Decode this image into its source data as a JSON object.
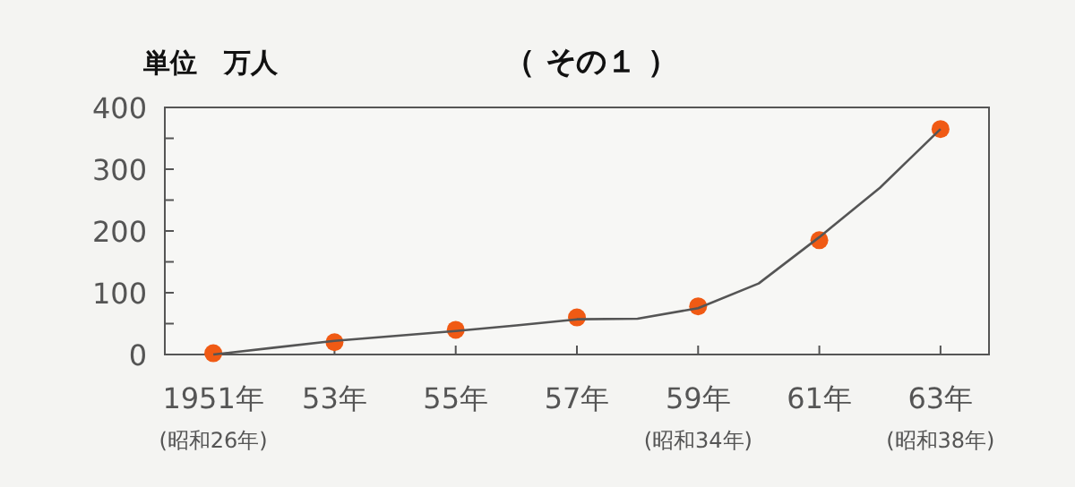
{
  "chart_data": {
    "type": "line",
    "title": "（ その１ ）",
    "ylabel": "単位　万人",
    "categories": [
      "1951年\n(昭和26年)",
      null,
      "53年",
      null,
      "55年",
      null,
      "57年",
      null,
      "59年\n(昭和34年)",
      null,
      "61年",
      null,
      "63年\n(昭和38年)"
    ],
    "ylim": [
      0,
      400
    ],
    "yticks": [
      0,
      {
        "value": 50,
        "label": null
      },
      100,
      {
        "value": 150,
        "label": null
      },
      200,
      {
        "value": 250,
        "label": null
      },
      300,
      {
        "value": 350,
        "label": null
      },
      400
    ],
    "series": [
      {
        "type": "scatter",
        "marker": "circle",
        "color": "#f05a14",
        "values": [
          2,
          null,
          20,
          null,
          40,
          null,
          60,
          null,
          78,
          null,
          185,
          null,
          365
        ]
      },
      {
        "color": "#555555",
        "values": [
          0,
          11,
          22,
          30,
          38,
          47,
          57,
          58,
          75,
          115,
          190,
          270,
          365
        ]
      }
    ]
  }
}
